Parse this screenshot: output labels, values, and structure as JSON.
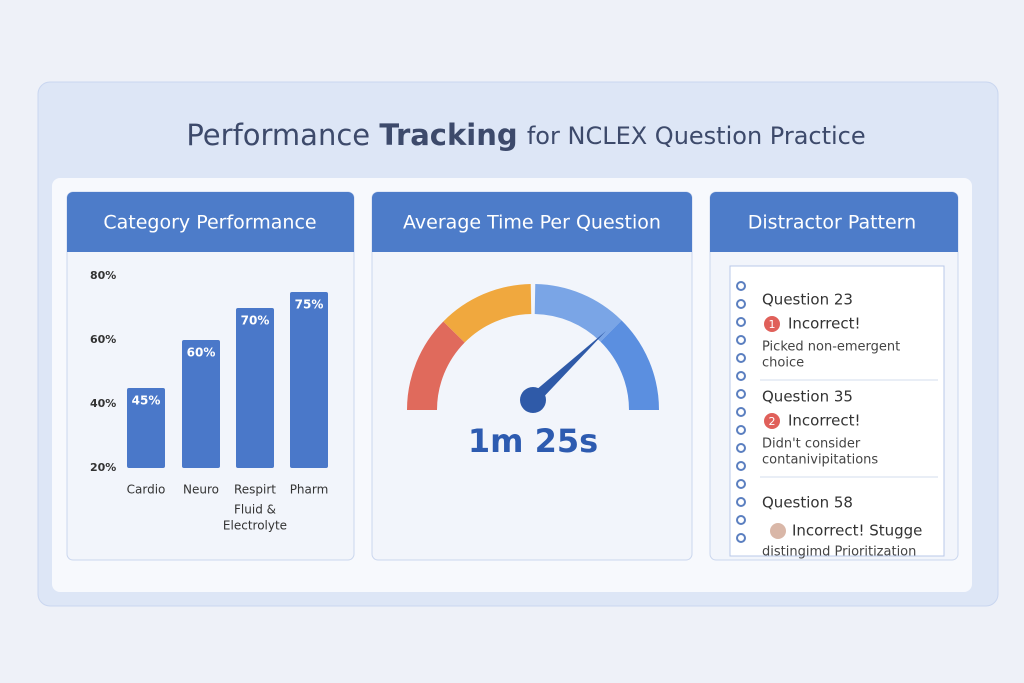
{
  "header": {
    "title": [
      "Performance",
      "Tracking",
      "for NCLEX Question Practice"
    ]
  },
  "chart_data": {
    "type": "bar",
    "title": "Category Performance",
    "categories": [
      "Cardio",
      "Neuro",
      "Respirt",
      "Pharm"
    ],
    "annotation": [
      "Fluid &",
      "Electrolyte"
    ],
    "values": [
      45,
      60,
      70,
      75
    ],
    "value_labels": [
      "45%",
      "60%",
      "70%",
      "75%"
    ],
    "color": "#4a78c9",
    "ylim": [
      20,
      80
    ],
    "yticks": [
      {
        "value": 20,
        "label": "20%"
      },
      {
        "value": 40,
        "label": "40%"
      },
      {
        "value": 60,
        "label": "60%"
      },
      {
        "value": 80,
        "label": "80%"
      }
    ]
  },
  "timer": {
    "title": "Average Time Per Question",
    "value": "1m 25s"
  },
  "distractors": {
    "title": "Distractor Pattern",
    "items": [
      {
        "question": "Question 23",
        "badge": "1",
        "status": "Incorrect!",
        "note": [
          "Picked non-emergent",
          "choice"
        ]
      },
      {
        "question": "Question 35",
        "badge": "2",
        "status": "Incorrect!",
        "note": [
          "Didn't consider",
          "contanivipitations"
        ]
      },
      {
        "question": "Question 58",
        "status": "Incorrect! Stugge",
        "note": [
          "distingimd Prioritization"
        ]
      }
    ]
  }
}
